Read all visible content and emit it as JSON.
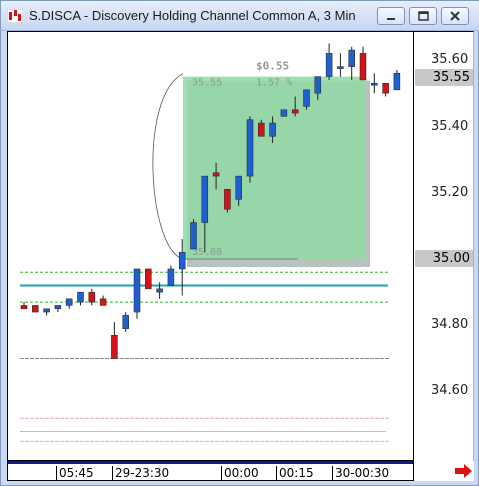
{
  "window": {
    "title": "S.DISCA - Discovery Holding Channel Common A, 3 Min"
  },
  "axis": {
    "labels": [
      "35.60",
      "35.40",
      "35.20",
      "34.80",
      "34.60"
    ],
    "highlight_price": "35.55",
    "highlight_level": "35.00"
  },
  "time_axis": [
    "05:45",
    "29-23:30",
    "00:00",
    "00:15",
    "30-00:30"
  ],
  "annotation": {
    "change": "$0.55",
    "top_price": "35.55",
    "percent": "1.57 %",
    "bottom_price": "35.00"
  },
  "colors": {
    "up": "#1f5fd0",
    "down": "#d0141a",
    "channel_top": "#2fb52f",
    "channel_mid": "#1aa3b8",
    "box_fill": "#8fd9a6",
    "pink": "#f0a0d0"
  },
  "chart_data": {
    "type": "candlestick",
    "candles": [
      {
        "o": 34.86,
        "h": 34.87,
        "l": 34.85,
        "c": 34.85
      },
      {
        "o": 34.86,
        "h": 34.86,
        "l": 34.84,
        "c": 34.84
      },
      {
        "o": 34.84,
        "h": 34.85,
        "l": 34.83,
        "c": 34.85
      },
      {
        "o": 34.85,
        "h": 34.86,
        "l": 34.84,
        "c": 34.86
      },
      {
        "o": 34.86,
        "h": 34.88,
        "l": 34.85,
        "c": 34.88
      },
      {
        "o": 34.87,
        "h": 34.9,
        "l": 34.86,
        "c": 34.9
      },
      {
        "o": 34.9,
        "h": 34.91,
        "l": 34.86,
        "c": 34.87
      },
      {
        "o": 34.88,
        "h": 34.89,
        "l": 34.86,
        "c": 34.86
      },
      {
        "o": 34.77,
        "h": 34.81,
        "l": 34.7,
        "c": 34.7
      },
      {
        "o": 34.79,
        "h": 34.84,
        "l": 34.78,
        "c": 34.83
      },
      {
        "o": 34.84,
        "h": 34.97,
        "l": 34.82,
        "c": 34.97
      },
      {
        "o": 34.97,
        "h": 34.97,
        "l": 34.91,
        "c": 34.91
      },
      {
        "o": 34.9,
        "h": 34.93,
        "l": 34.88,
        "c": 34.91
      },
      {
        "o": 34.92,
        "h": 34.98,
        "l": 34.92,
        "c": 34.97
      },
      {
        "o": 34.97,
        "h": 35.06,
        "l": 34.89,
        "c": 35.02
      },
      {
        "o": 35.03,
        "h": 35.12,
        "l": 35.03,
        "c": 35.11
      },
      {
        "o": 35.11,
        "h": 35.25,
        "l": 35.02,
        "c": 35.25
      },
      {
        "o": 35.26,
        "h": 35.29,
        "l": 35.21,
        "c": 35.25
      },
      {
        "o": 35.21,
        "h": 35.2,
        "l": 35.14,
        "c": 35.15
      },
      {
        "o": 35.18,
        "h": 35.25,
        "l": 35.16,
        "c": 35.25
      },
      {
        "o": 35.25,
        "h": 35.43,
        "l": 35.23,
        "c": 35.42
      },
      {
        "o": 35.41,
        "h": 35.42,
        "l": 35.37,
        "c": 35.37
      },
      {
        "o": 35.37,
        "h": 35.43,
        "l": 35.35,
        "c": 35.41
      },
      {
        "o": 35.43,
        "h": 35.45,
        "l": 35.43,
        "c": 35.45
      },
      {
        "o": 35.45,
        "h": 35.49,
        "l": 35.43,
        "c": 35.44
      },
      {
        "o": 35.46,
        "h": 35.51,
        "l": 35.45,
        "c": 35.51
      },
      {
        "o": 35.5,
        "h": 35.55,
        "l": 35.48,
        "c": 35.55
      },
      {
        "o": 35.55,
        "h": 35.65,
        "l": 35.54,
        "c": 35.62
      },
      {
        "o": 35.58,
        "h": 35.62,
        "l": 35.55,
        "c": 35.58
      },
      {
        "o": 35.58,
        "h": 35.64,
        "l": 35.54,
        "c": 35.63
      },
      {
        "o": 35.62,
        "h": 35.64,
        "l": 35.55,
        "c": 35.54
      },
      {
        "o": 35.53,
        "h": 35.56,
        "l": 35.5,
        "c": 35.53
      },
      {
        "o": 35.53,
        "h": 35.52,
        "l": 35.49,
        "c": 35.5
      },
      {
        "o": 35.51,
        "h": 35.57,
        "l": 35.51,
        "c": 35.56
      }
    ],
    "levels": {
      "green_upper": 34.96,
      "cyan": 34.92,
      "green_lower": 34.87,
      "gray": 34.7,
      "pink_1": 34.52,
      "pink_2": 34.48,
      "pink_3": 34.45
    },
    "ylim": [
      34.42,
      35.73
    ]
  }
}
